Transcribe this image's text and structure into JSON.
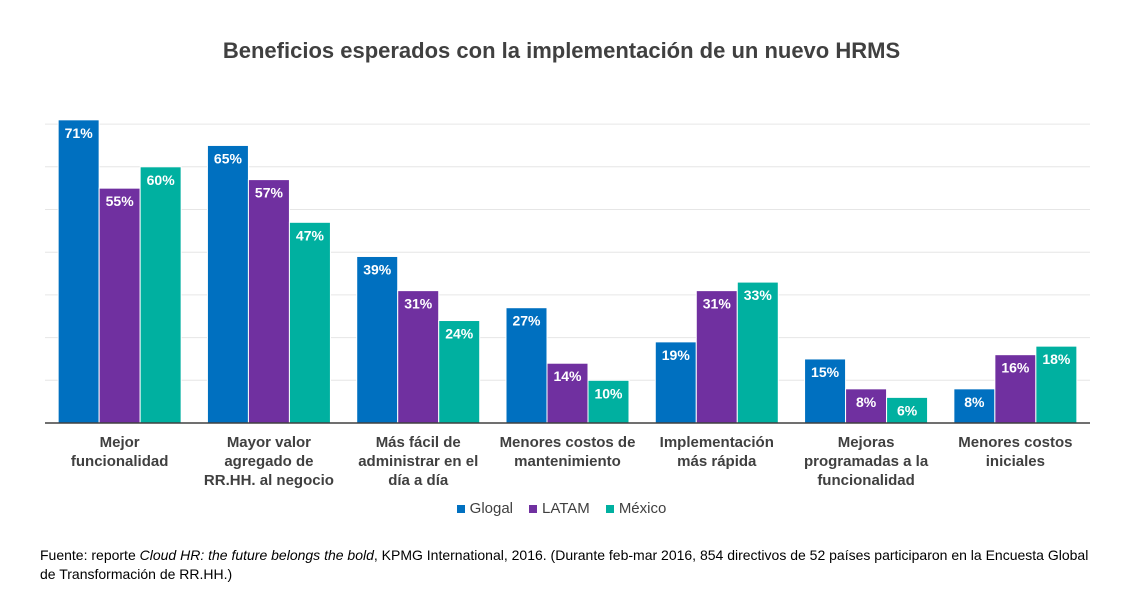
{
  "chart_data": {
    "type": "bar",
    "title": "Beneficios esperados con la implementación de un nuevo HRMS",
    "categories": [
      [
        "Mejor",
        "funcionalidad"
      ],
      [
        "Mayor valor",
        "agregado de",
        "RR.HH. al negocio"
      ],
      [
        "Más fácil de",
        "administrar en el",
        "día a día"
      ],
      [
        "Menores costos de",
        "mantenimiento"
      ],
      [
        "Implementación",
        "más rápida"
      ],
      [
        "Mejoras",
        "programadas a la",
        "funcionalidad"
      ],
      [
        "Menores costos",
        "iniciales"
      ]
    ],
    "series": [
      {
        "name": "Glogal",
        "color": "#0070C0",
        "values": [
          71,
          65,
          39,
          27,
          19,
          15,
          8
        ]
      },
      {
        "name": "LATAM",
        "color": "#7030A0",
        "values": [
          55,
          57,
          31,
          14,
          31,
          8,
          16
        ]
      },
      {
        "name": "México",
        "color": "#00B0A0",
        "values": [
          60,
          47,
          24,
          10,
          33,
          6,
          18
        ]
      }
    ],
    "value_suffix": "%",
    "ylim": [
      0,
      70
    ],
    "grid": true,
    "legend": "bottom"
  },
  "footnote": {
    "pre": "Fuente: reporte ",
    "italic": "Cloud HR: the future belongs the bold",
    "post": ", KPMG International, 2016. (Durante feb-mar 2016, 854 directivos de 52 países participaron en la Encuesta Global de Transformación de RR.HH.)"
  }
}
